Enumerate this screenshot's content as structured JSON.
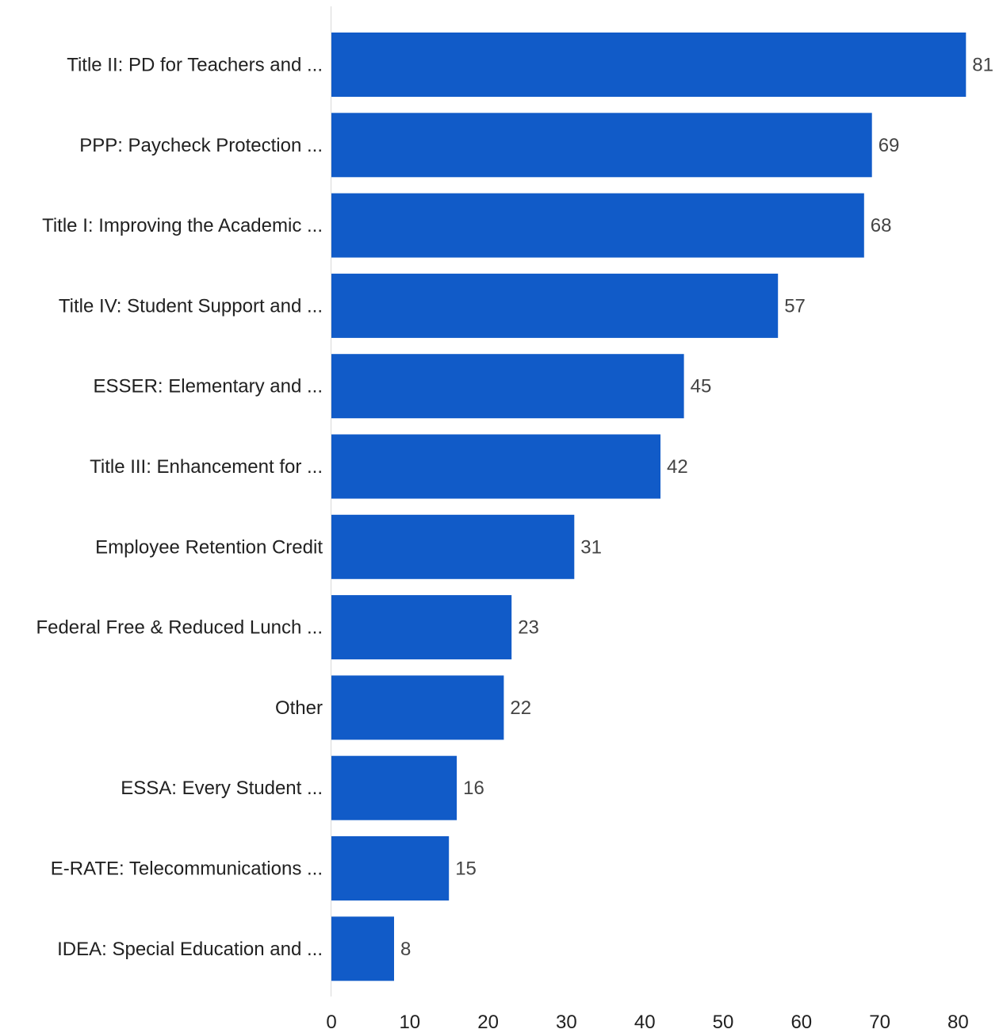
{
  "chart_data": {
    "type": "bar",
    "orientation": "horizontal",
    "categories": [
      "Title II: PD for Teachers and ...",
      "PPP: Paycheck Protection ...",
      "Title I: Improving the Academic ...",
      "Title IV: Student Support and ...",
      "ESSER: Elementary and ...",
      "Title III: Enhancement for ...",
      "Employee Retention Credit",
      "Federal Free & Reduced Lunch ...",
      "Other",
      "ESSA: Every Student ...",
      "E-RATE: Telecommunications ...",
      "IDEA: Special Education and ..."
    ],
    "values": [
      81,
      69,
      68,
      57,
      45,
      42,
      31,
      23,
      22,
      16,
      15,
      8
    ],
    "xlim": [
      0,
      85
    ],
    "xticks": [
      0,
      10,
      20,
      30,
      40,
      50,
      60,
      70,
      80
    ],
    "title": "",
    "xlabel": "",
    "ylabel": "",
    "grid": false,
    "data_labels": true,
    "bar_color": "#115bc8"
  }
}
